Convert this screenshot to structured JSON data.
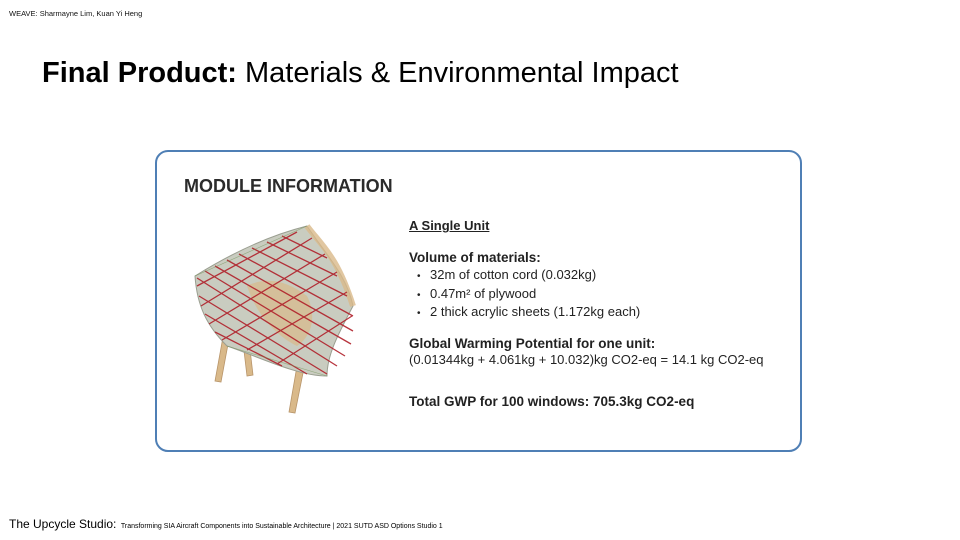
{
  "header": {
    "credit": "WEAVE: Sharmayne Lim, Kuan Yi Heng",
    "title_bold": "Final Product:",
    "title_rest": "Materials & Environmental Impact"
  },
  "card": {
    "heading": "MODULE INFORMATION",
    "unit_title": "A Single Unit",
    "volume_title": "Volume of materials:",
    "materials": [
      "32m of cotton cord (0.032kg)",
      "0.47m² of plywood",
      "2 thick acrylic sheets (1.172kg each)"
    ],
    "gwp_title": "Global Warming Potential for one unit:",
    "gwp_formula": "(0.01344kg + 4.061kg + 10.032)kg CO2-eq = 14.1 kg CO2-eq",
    "total": "Total GWP for 100 windows: 705.3kg CO2-eq",
    "image_icon": "woven-module-icon",
    "colors": {
      "border": "#4f7fb5",
      "cord": "#b0202a",
      "plywood": "#d9b98a"
    }
  },
  "footer": {
    "studio": "The Upcycle Studio:",
    "subtitle": "Transforming SIA Aircraft Components into Sustainable Architecture | 2021 SUTD ASD Options Studio 1"
  }
}
